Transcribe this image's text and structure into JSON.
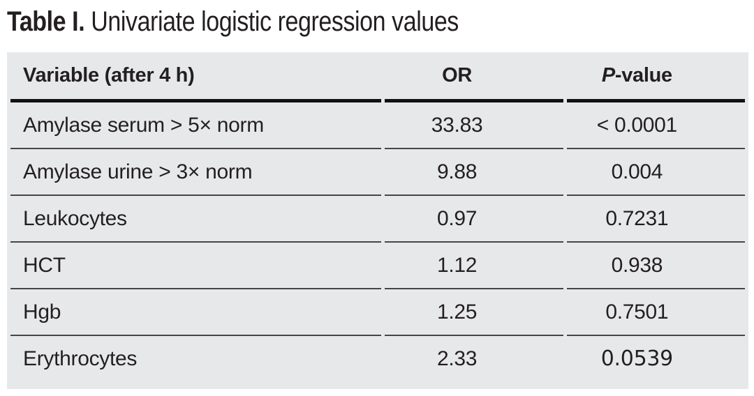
{
  "title": {
    "label": "Table I.",
    "text": "Univariate logistic regression values"
  },
  "table": {
    "header": {
      "variable": "Variable (after 4 h)",
      "or": "OR",
      "p_italic": "P",
      "p_rest": "-value"
    },
    "rows": [
      {
        "variable": "Amylase serum > 5× norm",
        "or": "33.83",
        "p": "< 0.0001"
      },
      {
        "variable": "Amylase urine > 3× norm",
        "or": "9.88",
        "p": "0.004"
      },
      {
        "variable": "Leukocytes",
        "or": "0.97",
        "p": "0.7231"
      },
      {
        "variable": "HCT",
        "or": "1.12",
        "p": "0.938"
      },
      {
        "variable": "Hgb",
        "or": "1.25",
        "p": "0.7501"
      },
      {
        "variable": "Erythrocytes",
        "or": "2.33",
        "p": "0.0539"
      }
    ]
  },
  "colors": {
    "page_background": "#ffffff",
    "table_background": "#e7e8ea",
    "text": "#231f20",
    "thick_rule": "#111111",
    "thin_rule": "#454545"
  }
}
